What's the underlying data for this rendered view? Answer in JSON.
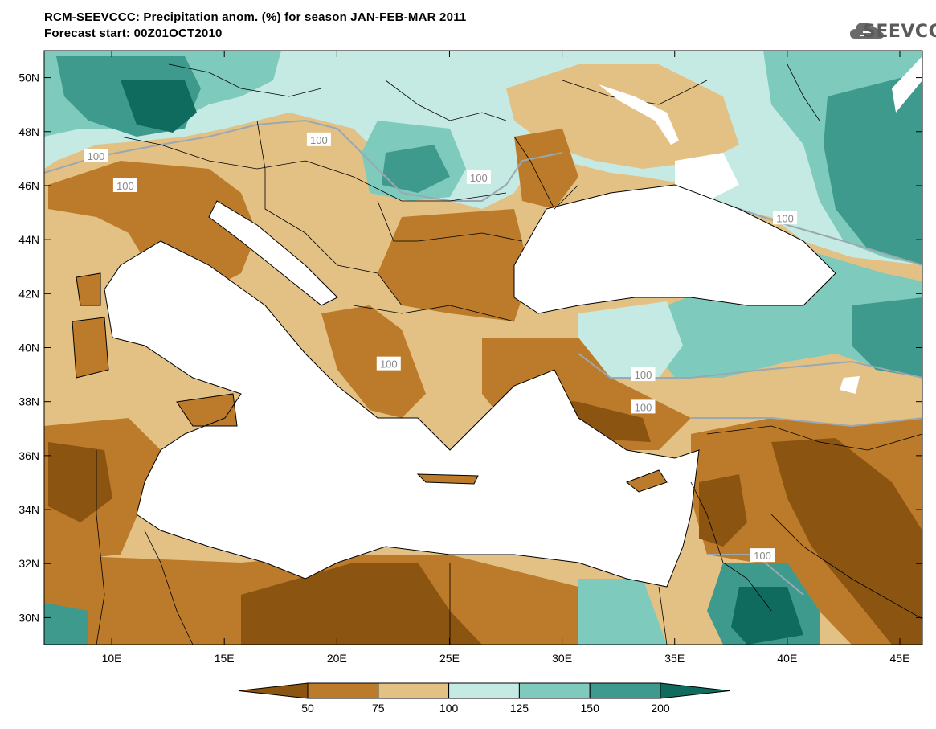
{
  "header": {
    "title_line1": "RCM-SEEVCCC: Precipitation anom. (%) for season JAN-FEB-MAR 2011",
    "title_line2": "Forecast start: 00Z01OCT2010"
  },
  "logo": {
    "text": "SEEVCCC",
    "icon": "cloud-logo-icon"
  },
  "map": {
    "lon_range": [
      7,
      46
    ],
    "lat_range": [
      29,
      51
    ],
    "x_ticks": [
      {
        "value": 10,
        "label": "10E"
      },
      {
        "value": 15,
        "label": "15E"
      },
      {
        "value": 20,
        "label": "20E"
      },
      {
        "value": 25,
        "label": "25E"
      },
      {
        "value": 30,
        "label": "30E"
      },
      {
        "value": 35,
        "label": "35E"
      },
      {
        "value": 40,
        "label": "40E"
      },
      {
        "value": 45,
        "label": "45E"
      }
    ],
    "y_ticks": [
      {
        "value": 50,
        "label": "50N"
      },
      {
        "value": 48,
        "label": "48N"
      },
      {
        "value": 46,
        "label": "46N"
      },
      {
        "value": 44,
        "label": "44N"
      },
      {
        "value": 42,
        "label": "42N"
      },
      {
        "value": 40,
        "label": "40N"
      },
      {
        "value": 38,
        "label": "38N"
      },
      {
        "value": 36,
        "label": "36N"
      },
      {
        "value": 34,
        "label": "34N"
      },
      {
        "value": 32,
        "label": "32N"
      },
      {
        "value": 30,
        "label": "30N"
      }
    ],
    "contour_labels": [
      {
        "text": "100",
        "lon": 19.2,
        "lat": 47.7
      },
      {
        "text": "100",
        "lon": 9.3,
        "lat": 47.1
      },
      {
        "text": "100",
        "lon": 10.6,
        "lat": 46.0
      },
      {
        "text": "100",
        "lon": 26.3,
        "lat": 46.3
      },
      {
        "text": "100",
        "lon": 39.9,
        "lat": 44.8
      },
      {
        "text": "100",
        "lon": 22.3,
        "lat": 39.4
      },
      {
        "text": "100",
        "lon": 33.6,
        "lat": 39.0
      },
      {
        "text": "100",
        "lon": 33.6,
        "lat": 37.8
      },
      {
        "text": "100",
        "lon": 38.9,
        "lat": 32.3
      }
    ]
  },
  "colorbar": {
    "levels": [
      "50",
      "75",
      "100",
      "125",
      "150",
      "200"
    ],
    "colors": [
      "#8b5410",
      "#bb7b2a",
      "#e3c185",
      "#c5eae3",
      "#7ecbbd",
      "#3d9a8c",
      "#0e6b5e"
    ]
  },
  "colors": {
    "dark_brown": "#8b5410",
    "brown": "#bb7b2a",
    "tan": "#e3c185",
    "light_teal": "#c5eae3",
    "teal": "#7ecbbd",
    "dark_teal": "#3d9a8c",
    "deep_teal": "#0e6b5e"
  }
}
